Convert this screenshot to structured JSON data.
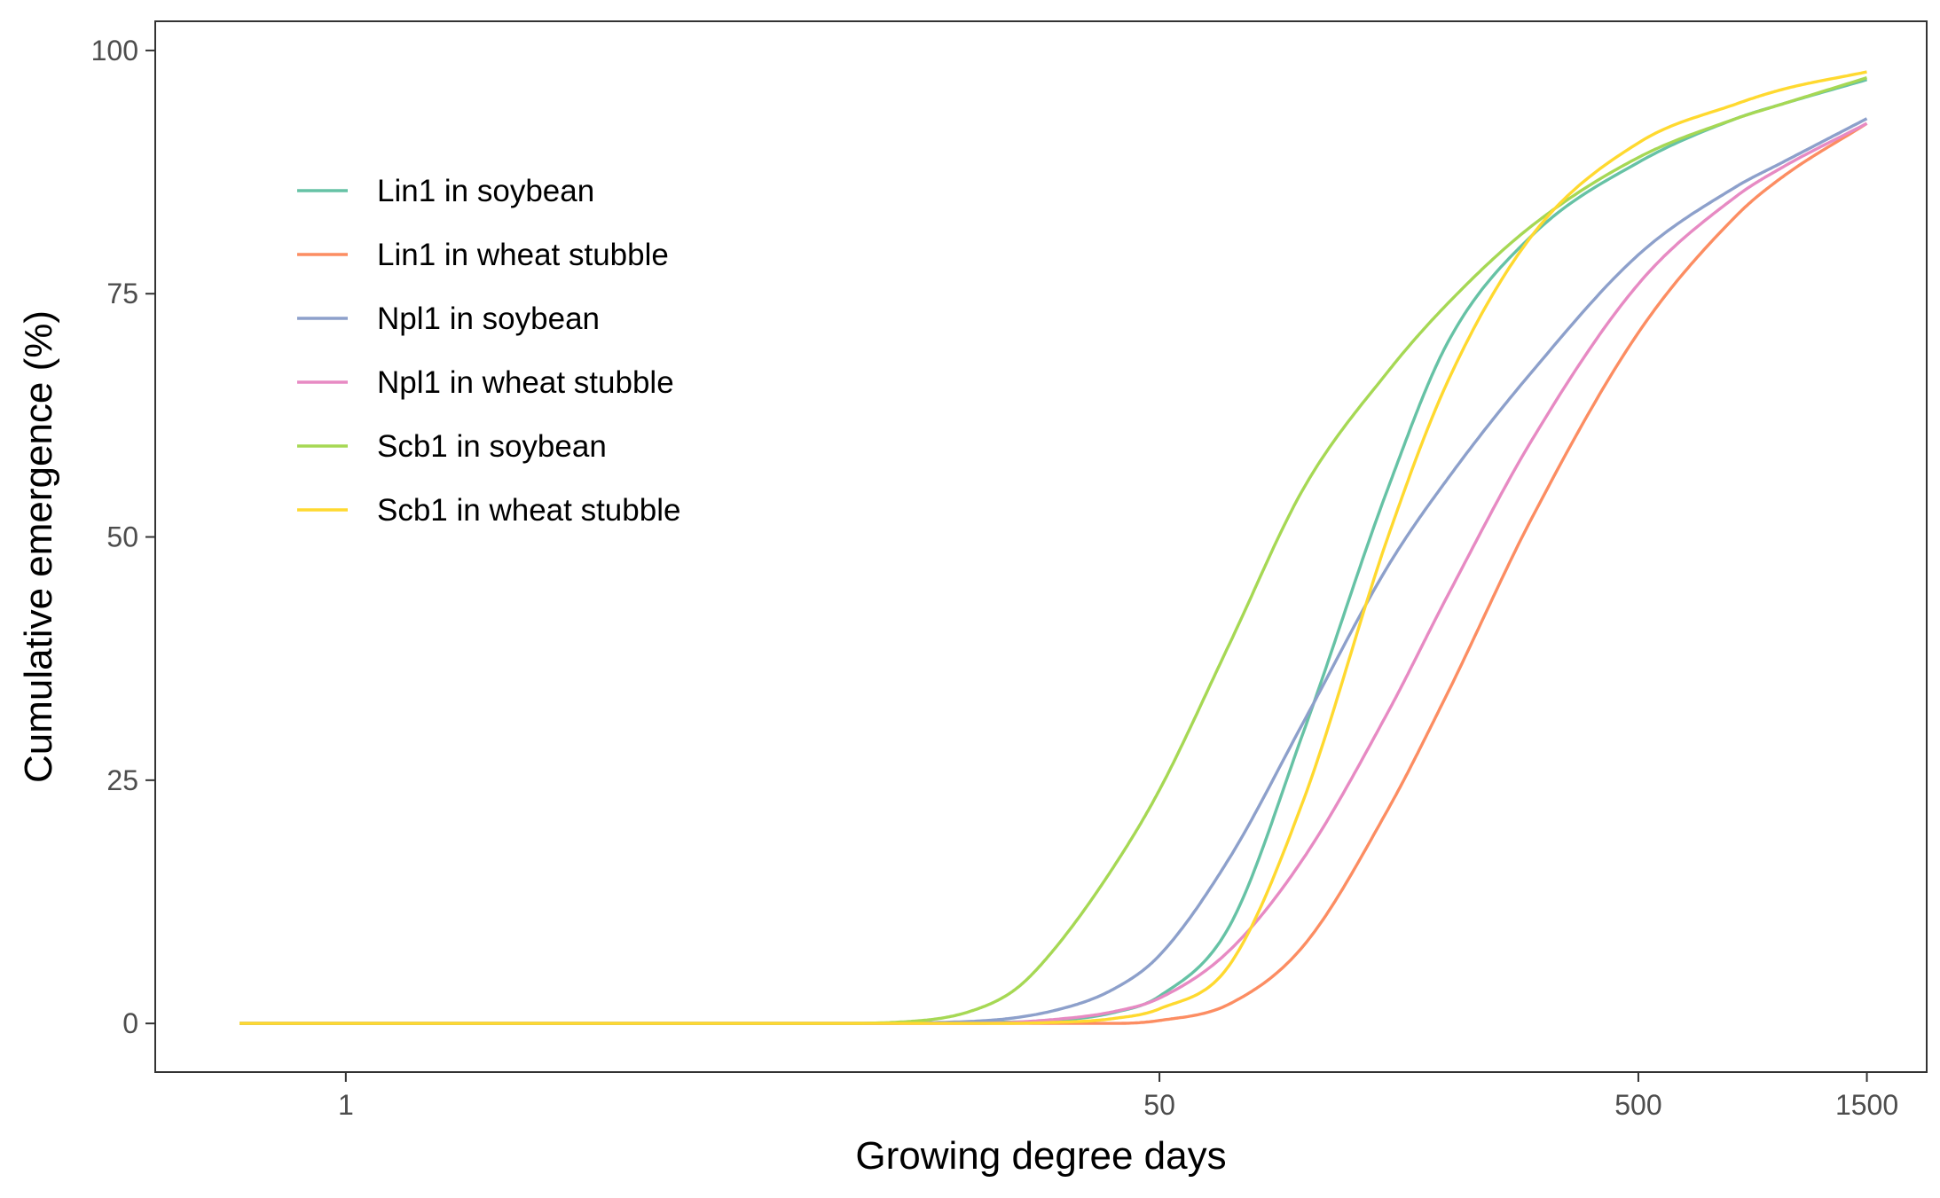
{
  "chart_data": {
    "type": "line",
    "title": "",
    "xlabel": "Growing degree days",
    "ylabel": "Cumulative emergence (%)",
    "x_scale": "log",
    "xlim": [
      0.4,
      2000
    ],
    "ylim": [
      -5,
      103
    ],
    "x_ticks": [
      {
        "value": 1,
        "label": "1"
      },
      {
        "value": 50,
        "label": "50"
      },
      {
        "value": 500,
        "label": "500"
      },
      {
        "value": 1500,
        "label": "1500"
      }
    ],
    "y_ticks": [
      {
        "value": 0,
        "label": "0"
      },
      {
        "value": 25,
        "label": "25"
      },
      {
        "value": 50,
        "label": "50"
      },
      {
        "value": 75,
        "label": "75"
      },
      {
        "value": 100,
        "label": "100"
      }
    ],
    "grid": false,
    "legend": {
      "position": "top-left inside"
    },
    "series": [
      {
        "name": "Lin1 in soybean",
        "color": "#66C2A5",
        "points": [
          [
            0.6,
            0
          ],
          [
            10,
            0
          ],
          [
            20,
            0.1
          ],
          [
            30,
            0.3
          ],
          [
            40,
            1.1
          ],
          [
            50,
            2.8
          ],
          [
            70,
            10
          ],
          [
            100,
            30
          ],
          [
            150,
            55
          ],
          [
            200,
            70
          ],
          [
            300,
            81
          ],
          [
            500,
            88.5
          ],
          [
            800,
            93
          ],
          [
            1000,
            94.5
          ],
          [
            1500,
            97
          ]
        ]
      },
      {
        "name": "Lin1 in wheat stubble",
        "color": "#FC8D62",
        "points": [
          [
            0.6,
            0
          ],
          [
            20,
            0
          ],
          [
            40,
            0
          ],
          [
            50,
            0.3
          ],
          [
            70,
            2
          ],
          [
            100,
            8
          ],
          [
            150,
            22
          ],
          [
            200,
            34
          ],
          [
            300,
            52
          ],
          [
            500,
            71
          ],
          [
            800,
            83
          ],
          [
            1000,
            87
          ],
          [
            1500,
            92.5
          ]
        ]
      },
      {
        "name": "Npl1 in soybean",
        "color": "#8DA0CB",
        "points": [
          [
            0.6,
            0
          ],
          [
            10,
            0
          ],
          [
            20,
            0.2
          ],
          [
            30,
            1.3
          ],
          [
            40,
            3.5
          ],
          [
            50,
            7
          ],
          [
            70,
            17
          ],
          [
            100,
            31
          ],
          [
            150,
            47
          ],
          [
            200,
            56
          ],
          [
            300,
            67
          ],
          [
            500,
            79
          ],
          [
            800,
            86
          ],
          [
            1000,
            88.5
          ],
          [
            1500,
            93
          ]
        ]
      },
      {
        "name": "Npl1 in wheat stubble",
        "color": "#E78AC3",
        "points": [
          [
            0.6,
            0
          ],
          [
            20,
            0
          ],
          [
            30,
            0.4
          ],
          [
            40,
            1.2
          ],
          [
            50,
            2.6
          ],
          [
            70,
            7.5
          ],
          [
            100,
            17
          ],
          [
            150,
            32
          ],
          [
            200,
            44
          ],
          [
            300,
            60
          ],
          [
            500,
            76
          ],
          [
            800,
            85
          ],
          [
            1000,
            88
          ],
          [
            1500,
            92.5
          ]
        ]
      },
      {
        "name": "Scb1 in soybean",
        "color": "#A6D854",
        "points": [
          [
            0.6,
            0
          ],
          [
            10,
            0
          ],
          [
            15,
            0.2
          ],
          [
            20,
            1.2
          ],
          [
            25,
            3.5
          ],
          [
            30,
            7.5
          ],
          [
            40,
            16
          ],
          [
            50,
            24
          ],
          [
            70,
            39
          ],
          [
            100,
            55
          ],
          [
            150,
            67
          ],
          [
            200,
            74
          ],
          [
            300,
            82
          ],
          [
            500,
            89
          ],
          [
            800,
            93
          ],
          [
            1000,
            94.5
          ],
          [
            1500,
            97.2
          ]
        ]
      },
      {
        "name": "Scb1 in wheat stubble",
        "color": "#FFD92F",
        "points": [
          [
            0.6,
            0
          ],
          [
            20,
            0
          ],
          [
            30,
            0.1
          ],
          [
            40,
            0.5
          ],
          [
            50,
            1.5
          ],
          [
            70,
            6
          ],
          [
            100,
            23
          ],
          [
            150,
            50
          ],
          [
            200,
            66
          ],
          [
            300,
            81
          ],
          [
            500,
            90.5
          ],
          [
            800,
            94.5
          ],
          [
            1000,
            96
          ],
          [
            1500,
            97.8
          ]
        ]
      }
    ]
  }
}
